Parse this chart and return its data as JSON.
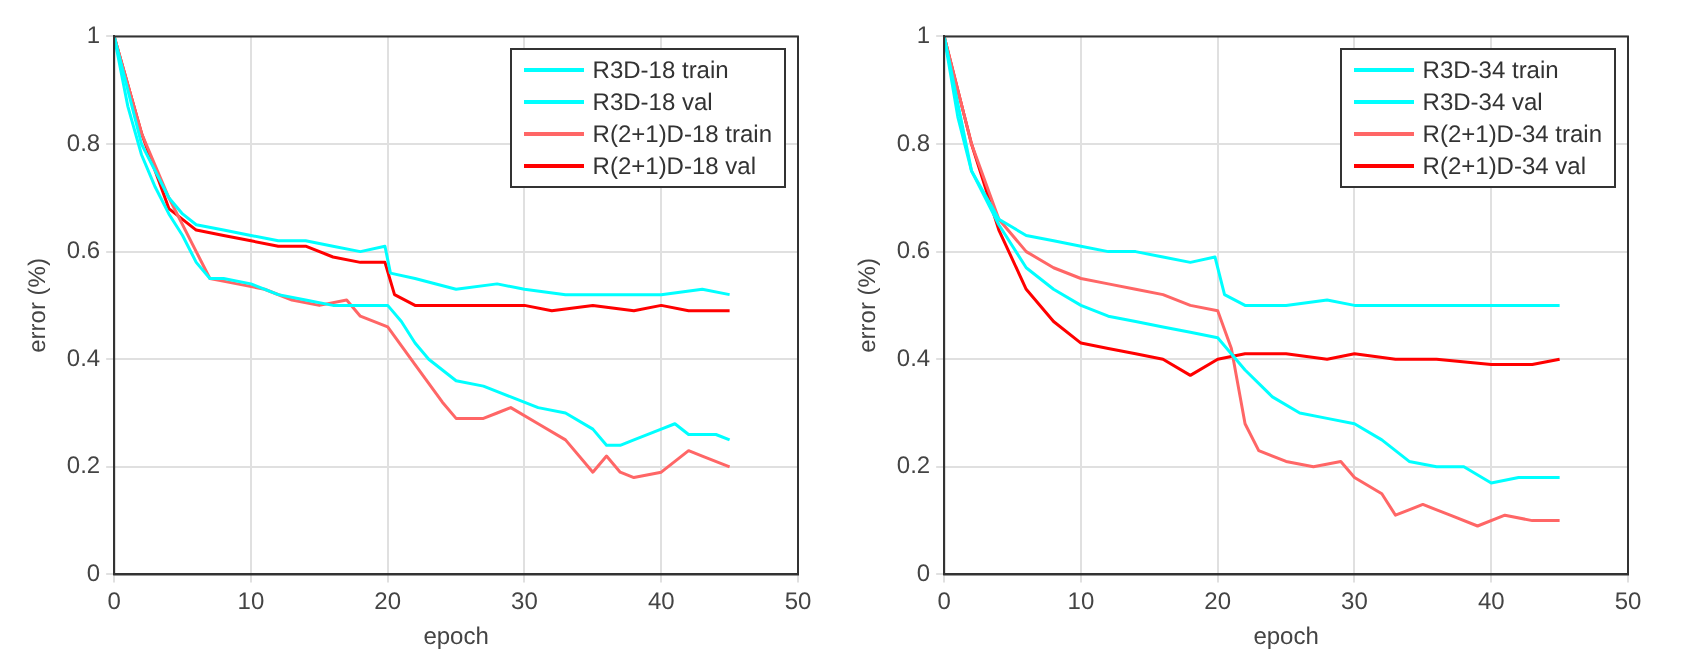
{
  "chart_data": [
    {
      "type": "line",
      "xlabel": "epoch",
      "ylabel": "error (%)",
      "xlim": [
        0,
        50
      ],
      "xticks": [
        0,
        10,
        20,
        30,
        40,
        50
      ],
      "ylim": [
        0,
        1
      ],
      "yticks": [
        0,
        0.2,
        0.4,
        0.6,
        0.8,
        1
      ],
      "grid": true,
      "legend": "top right",
      "marker": "none",
      "line_style": "solid",
      "series": [
        {
          "name": "R3D-18 train",
          "color": "#00ffff",
          "x": [
            0,
            1,
            2,
            3,
            4,
            5,
            6,
            7,
            8,
            10,
            12,
            14,
            16,
            18,
            20,
            21,
            22,
            23,
            24,
            25,
            27,
            29,
            31,
            33,
            35,
            36,
            37,
            38,
            40,
            41,
            42,
            44,
            45
          ],
          "values": [
            1,
            0.87,
            0.78,
            0.72,
            0.67,
            0.63,
            0.58,
            0.55,
            0.55,
            0.54,
            0.52,
            0.51,
            0.5,
            0.5,
            0.5,
            0.47,
            0.43,
            0.4,
            0.38,
            0.36,
            0.35,
            0.33,
            0.31,
            0.3,
            0.27,
            0.24,
            0.24,
            0.25,
            0.27,
            0.28,
            0.26,
            0.26,
            0.25
          ]
        },
        {
          "name": "R3D-18 val",
          "color": "#00ffff",
          "x": [
            0,
            2,
            4,
            5,
            6,
            8,
            10,
            12,
            14,
            16,
            18,
            19.8,
            20.2,
            22,
            25,
            28,
            30,
            33,
            36,
            40,
            43,
            45
          ],
          "values": [
            1,
            0.8,
            0.7,
            0.67,
            0.65,
            0.64,
            0.63,
            0.62,
            0.62,
            0.61,
            0.6,
            0.61,
            0.56,
            0.55,
            0.53,
            0.54,
            0.53,
            0.52,
            0.52,
            0.52,
            0.53,
            0.52
          ]
        },
        {
          "name": "R(2+1)D-18 train",
          "color": "#ff6666",
          "x": [
            0,
            2,
            4,
            6,
            7,
            9,
            11,
            13,
            15,
            17,
            18,
            20,
            22,
            24,
            25,
            27,
            28,
            29,
            31,
            33,
            35,
            36,
            37,
            38,
            40,
            42,
            43,
            45
          ],
          "values": [
            1,
            0.82,
            0.7,
            0.6,
            0.55,
            0.54,
            0.53,
            0.51,
            0.5,
            0.51,
            0.48,
            0.46,
            0.39,
            0.32,
            0.29,
            0.29,
            0.3,
            0.31,
            0.28,
            0.25,
            0.19,
            0.22,
            0.19,
            0.18,
            0.19,
            0.23,
            0.22,
            0.2
          ]
        },
        {
          "name": "R(2+1)D-18 val",
          "color": "#ff0000",
          "x": [
            0,
            2,
            4,
            6,
            8,
            10,
            12,
            14,
            16,
            18,
            19.8,
            20.5,
            22,
            25,
            28,
            30,
            32,
            35,
            38,
            40,
            42,
            45
          ],
          "values": [
            1,
            0.82,
            0.68,
            0.64,
            0.63,
            0.62,
            0.61,
            0.61,
            0.59,
            0.58,
            0.58,
            0.52,
            0.5,
            0.5,
            0.5,
            0.5,
            0.49,
            0.5,
            0.49,
            0.5,
            0.49,
            0.49
          ]
        }
      ]
    },
    {
      "type": "line",
      "xlabel": "epoch",
      "ylabel": "error (%)",
      "xlim": [
        0,
        50
      ],
      "xticks": [
        0,
        10,
        20,
        30,
        40,
        50
      ],
      "ylim": [
        0,
        1
      ],
      "yticks": [
        0,
        0.2,
        0.4,
        0.6,
        0.8,
        1
      ],
      "grid": true,
      "legend": "top right",
      "marker": "none",
      "line_style": "solid",
      "series": [
        {
          "name": "R3D-34 train",
          "color": "#00ffff",
          "x": [
            0,
            1,
            2,
            4,
            6,
            8,
            10,
            12,
            14,
            16,
            18,
            20,
            22,
            24,
            26,
            28,
            30,
            32,
            34,
            36,
            38,
            40,
            42,
            45
          ],
          "values": [
            1,
            0.85,
            0.75,
            0.65,
            0.57,
            0.53,
            0.5,
            0.48,
            0.47,
            0.46,
            0.45,
            0.44,
            0.38,
            0.33,
            0.3,
            0.29,
            0.28,
            0.25,
            0.21,
            0.2,
            0.2,
            0.17,
            0.18,
            0.18
          ]
        },
        {
          "name": "R3D-34 val",
          "color": "#00ffff",
          "x": [
            0,
            2,
            4,
            6,
            8,
            10,
            12,
            14,
            16,
            18,
            19.8,
            20.5,
            22,
            25,
            28,
            30,
            35,
            40,
            45
          ],
          "values": [
            1,
            0.75,
            0.66,
            0.63,
            0.62,
            0.61,
            0.6,
            0.6,
            0.59,
            0.58,
            0.59,
            0.52,
            0.5,
            0.5,
            0.51,
            0.5,
            0.5,
            0.5,
            0.5
          ]
        },
        {
          "name": "R(2+1)D-34 train",
          "color": "#ff6666",
          "x": [
            0,
            2,
            4,
            6,
            8,
            10,
            12,
            14,
            16,
            18,
            20,
            21,
            22,
            23,
            25,
            27,
            29,
            30,
            32,
            33,
            35,
            37,
            39,
            41,
            43,
            45
          ],
          "values": [
            1,
            0.8,
            0.66,
            0.6,
            0.57,
            0.55,
            0.54,
            0.53,
            0.52,
            0.5,
            0.49,
            0.42,
            0.28,
            0.23,
            0.21,
            0.2,
            0.21,
            0.18,
            0.15,
            0.11,
            0.13,
            0.11,
            0.09,
            0.11,
            0.1,
            0.1
          ]
        },
        {
          "name": "R(2+1)D-34 val",
          "color": "#ff0000",
          "x": [
            0,
            2,
            4,
            6,
            8,
            10,
            12,
            14,
            16,
            18,
            20,
            22,
            25,
            28,
            30,
            33,
            36,
            40,
            43,
            45
          ],
          "values": [
            1,
            0.8,
            0.64,
            0.53,
            0.47,
            0.43,
            0.42,
            0.41,
            0.4,
            0.37,
            0.4,
            0.41,
            0.41,
            0.4,
            0.41,
            0.4,
            0.4,
            0.39,
            0.39,
            0.4
          ]
        }
      ]
    }
  ]
}
